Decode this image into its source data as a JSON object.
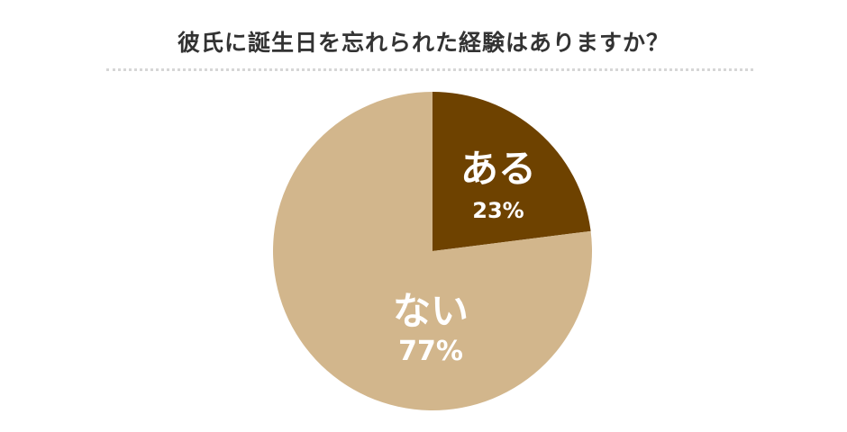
{
  "title": "彼氏に誕生日を忘れられた経験はありますか？",
  "chart_data": {
    "type": "pie",
    "title": "彼氏に誕生日を忘れられた経験はありますか？",
    "start_angle_deg": 0,
    "direction": "clockwise",
    "slices": [
      {
        "label": "ある",
        "value": 23,
        "value_label": "23%",
        "color": "#6e4200"
      },
      {
        "label": "ない",
        "value": 77,
        "value_label": "77%",
        "color": "#d2b68c"
      }
    ]
  }
}
